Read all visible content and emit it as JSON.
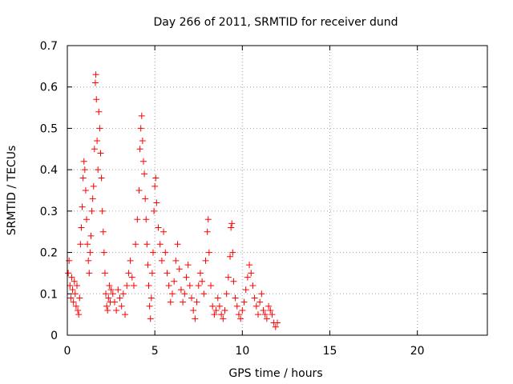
{
  "chart_data": {
    "type": "scatter",
    "title": "Day 266 of 2011, SRMTID for receiver dund",
    "xlabel": "GPS time / hours",
    "ylabel": "SRMTID / TECUs",
    "xlim": [
      0,
      24
    ],
    "ylim": [
      0,
      0.7
    ],
    "xticks": [
      0,
      5,
      10,
      15,
      20
    ],
    "xtick_labels": [
      "0",
      "5",
      "10",
      "15",
      "20"
    ],
    "yticks": [
      0,
      0.1,
      0.2,
      0.3,
      0.4,
      0.5,
      0.6,
      0.7
    ],
    "ytick_labels": [
      "0",
      "0.1",
      "0.2",
      "0.3",
      "0.4",
      "0.5",
      "0.6",
      "0.7"
    ],
    "grid": true,
    "marker": "+",
    "series": [
      {
        "name": "SRMTID",
        "color": "#ff0000",
        "points": [
          [
            0.05,
            0.15
          ],
          [
            0.1,
            0.18
          ],
          [
            0.15,
            0.12
          ],
          [
            0.2,
            0.09
          ],
          [
            0.25,
            0.14
          ],
          [
            0.3,
            0.11
          ],
          [
            0.35,
            0.08
          ],
          [
            0.4,
            0.13
          ],
          [
            0.45,
            0.1
          ],
          [
            0.5,
            0.07
          ],
          [
            0.55,
            0.12
          ],
          [
            0.6,
            0.06
          ],
          [
            0.65,
            0.05
          ],
          [
            0.7,
            0.09
          ],
          [
            0.75,
            0.22
          ],
          [
            0.8,
            0.26
          ],
          [
            0.85,
            0.31
          ],
          [
            0.9,
            0.38
          ],
          [
            0.95,
            0.42
          ],
          [
            1.0,
            0.4
          ],
          [
            1.05,
            0.35
          ],
          [
            1.1,
            0.28
          ],
          [
            1.15,
            0.22
          ],
          [
            1.2,
            0.18
          ],
          [
            1.25,
            0.15
          ],
          [
            1.3,
            0.2
          ],
          [
            1.35,
            0.24
          ],
          [
            1.4,
            0.3
          ],
          [
            1.45,
            0.33
          ],
          [
            1.5,
            0.36
          ],
          [
            1.55,
            0.45
          ],
          [
            1.6,
            0.61
          ],
          [
            1.63,
            0.63
          ],
          [
            1.66,
            0.57
          ],
          [
            1.7,
            0.47
          ],
          [
            1.75,
            0.4
          ],
          [
            1.8,
            0.54
          ],
          [
            1.85,
            0.5
          ],
          [
            1.9,
            0.44
          ],
          [
            1.95,
            0.38
          ],
          [
            2.0,
            0.3
          ],
          [
            2.05,
            0.25
          ],
          [
            2.1,
            0.2
          ],
          [
            2.15,
            0.15
          ],
          [
            2.2,
            0.1
          ],
          [
            2.25,
            0.07
          ],
          [
            2.3,
            0.06
          ],
          [
            2.35,
            0.09
          ],
          [
            2.4,
            0.12
          ],
          [
            2.45,
            0.08
          ],
          [
            2.5,
            0.11
          ],
          [
            2.6,
            0.1
          ],
          [
            2.7,
            0.08
          ],
          [
            2.8,
            0.06
          ],
          [
            2.9,
            0.11
          ],
          [
            3.0,
            0.09
          ],
          [
            3.1,
            0.07
          ],
          [
            3.2,
            0.1
          ],
          [
            3.3,
            0.05
          ],
          [
            3.4,
            0.12
          ],
          [
            3.5,
            0.15
          ],
          [
            3.6,
            0.18
          ],
          [
            3.7,
            0.14
          ],
          [
            3.8,
            0.12
          ],
          [
            3.9,
            0.22
          ],
          [
            4.0,
            0.28
          ],
          [
            4.1,
            0.35
          ],
          [
            4.15,
            0.45
          ],
          [
            4.2,
            0.5
          ],
          [
            4.25,
            0.53
          ],
          [
            4.3,
            0.47
          ],
          [
            4.35,
            0.42
          ],
          [
            4.4,
            0.39
          ],
          [
            4.45,
            0.33
          ],
          [
            4.5,
            0.28
          ],
          [
            4.55,
            0.22
          ],
          [
            4.6,
            0.17
          ],
          [
            4.65,
            0.12
          ],
          [
            4.7,
            0.07
          ],
          [
            4.75,
            0.04
          ],
          [
            4.8,
            0.09
          ],
          [
            4.85,
            0.15
          ],
          [
            4.9,
            0.2
          ],
          [
            4.95,
            0.3
          ],
          [
            5.0,
            0.36
          ],
          [
            5.05,
            0.38
          ],
          [
            5.1,
            0.32
          ],
          [
            5.2,
            0.26
          ],
          [
            5.3,
            0.22
          ],
          [
            5.4,
            0.18
          ],
          [
            5.5,
            0.25
          ],
          [
            5.6,
            0.2
          ],
          [
            5.7,
            0.15
          ],
          [
            5.8,
            0.12
          ],
          [
            5.9,
            0.08
          ],
          [
            6.0,
            0.1
          ],
          [
            6.1,
            0.13
          ],
          [
            6.2,
            0.18
          ],
          [
            6.3,
            0.22
          ],
          [
            6.4,
            0.16
          ],
          [
            6.5,
            0.11
          ],
          [
            6.6,
            0.08
          ],
          [
            6.7,
            0.1
          ],
          [
            6.8,
            0.14
          ],
          [
            6.9,
            0.17
          ],
          [
            7.0,
            0.12
          ],
          [
            7.1,
            0.09
          ],
          [
            7.2,
            0.06
          ],
          [
            7.3,
            0.04
          ],
          [
            7.4,
            0.08
          ],
          [
            7.5,
            0.12
          ],
          [
            7.6,
            0.15
          ],
          [
            7.7,
            0.13
          ],
          [
            7.8,
            0.1
          ],
          [
            7.9,
            0.18
          ],
          [
            8.0,
            0.25
          ],
          [
            8.05,
            0.28
          ],
          [
            8.1,
            0.2
          ],
          [
            8.2,
            0.12
          ],
          [
            8.3,
            0.07
          ],
          [
            8.4,
            0.05
          ],
          [
            8.5,
            0.06
          ],
          [
            8.6,
            0.09
          ],
          [
            8.7,
            0.07
          ],
          [
            8.8,
            0.05
          ],
          [
            8.9,
            0.04
          ],
          [
            9.0,
            0.06
          ],
          [
            9.1,
            0.1
          ],
          [
            9.2,
            0.14
          ],
          [
            9.3,
            0.19
          ],
          [
            9.35,
            0.26
          ],
          [
            9.4,
            0.27
          ],
          [
            9.45,
            0.2
          ],
          [
            9.5,
            0.13
          ],
          [
            9.6,
            0.09
          ],
          [
            9.7,
            0.07
          ],
          [
            9.8,
            0.05
          ],
          [
            9.9,
            0.04
          ],
          [
            10.0,
            0.06
          ],
          [
            10.1,
            0.08
          ],
          [
            10.2,
            0.11
          ],
          [
            10.3,
            0.14
          ],
          [
            10.4,
            0.17
          ],
          [
            10.5,
            0.15
          ],
          [
            10.6,
            0.12
          ],
          [
            10.7,
            0.09
          ],
          [
            10.8,
            0.07
          ],
          [
            10.9,
            0.05
          ],
          [
            11.0,
            0.08
          ],
          [
            11.1,
            0.1
          ],
          [
            11.2,
            0.06
          ],
          [
            11.3,
            0.05
          ],
          [
            11.4,
            0.04
          ],
          [
            11.5,
            0.07
          ],
          [
            11.6,
            0.06
          ],
          [
            11.7,
            0.05
          ],
          [
            11.8,
            0.03
          ],
          [
            11.9,
            0.02
          ],
          [
            12.0,
            0.03
          ]
        ]
      }
    ]
  }
}
